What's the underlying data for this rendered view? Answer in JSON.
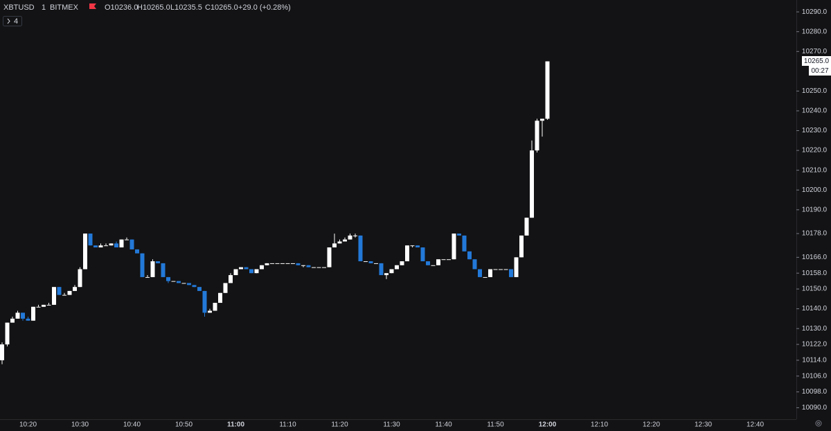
{
  "header": {
    "symbol": "XBTUSD",
    "interval": "1",
    "exchange": "BITMEX",
    "ohlc": [
      "O10236.0",
      "H10265.0",
      "L10235.5",
      "C10265.0",
      "+29.0 (+0.28%)"
    ],
    "indicators": "4"
  },
  "price_tag": {
    "price": "10265.0",
    "countdown": "00:27"
  },
  "chart_data": {
    "type": "candlestick",
    "up_color": "#ffffff",
    "down_color": "#2379d8",
    "categories": [
      null,
      null,
      null,
      null,
      null,
      "10:20",
      null,
      null,
      null,
      null,
      null,
      null,
      null,
      null,
      null,
      "10:30",
      null,
      null,
      null,
      null,
      null,
      null,
      null,
      null,
      null,
      "10:40",
      null,
      null,
      null,
      null,
      null,
      null,
      null,
      null,
      null,
      "10:50",
      null,
      null,
      null,
      null,
      null,
      null,
      null,
      null,
      null,
      "11:00",
      null,
      null,
      null,
      null,
      null,
      null,
      null,
      null,
      null,
      "11:10",
      null,
      null,
      null,
      null,
      null,
      null,
      null,
      null,
      null,
      "11:20",
      null,
      null,
      null,
      null,
      null,
      null,
      null,
      null,
      null,
      "11:30",
      null,
      null,
      null,
      null,
      null,
      null,
      null,
      null,
      null,
      "11:40",
      null,
      null,
      null,
      null,
      null,
      null,
      null,
      null,
      null,
      "11:50",
      null,
      null,
      null,
      null,
      null,
      null,
      null,
      null,
      null,
      "12:00",
      null,
      null,
      null,
      null,
      null,
      null,
      null,
      null,
      null,
      "12:10",
      null,
      null,
      null,
      null,
      null,
      null,
      null,
      null,
      null,
      "12:20",
      null,
      null,
      null,
      null,
      null,
      null,
      null,
      null,
      null,
      "12:30",
      null,
      null,
      null,
      null,
      null,
      null,
      null,
      null,
      null,
      "12:40",
      null,
      null,
      null,
      null
    ],
    "open": [
      10114,
      10122,
      10133,
      10135,
      10138,
      10135,
      10134,
      10141,
      10141,
      10142,
      10142,
      10151,
      10147,
      10147,
      10149,
      10151,
      10160,
      10178,
      10172,
      10171,
      10172,
      10172,
      10173,
      10171,
      10175,
      10175,
      10170,
      10168,
      10156,
      10156,
      10164,
      10163,
      10156,
      10154,
      10154,
      10153,
      10153,
      10152,
      10151,
      10149,
      10138,
      10139,
      10143,
      10148,
      10153,
      10157,
      10160,
      10161,
      10160,
      10158,
      10160,
      10162,
      10163,
      10163,
      10163,
      10163,
      10163,
      10163,
      10162,
      10162,
      10161,
      10161,
      10161,
      10161,
      10171,
      10173,
      10174,
      10175,
      10177,
      10177,
      10164,
      10164,
      10163,
      10163,
      10157,
      10158,
      10160,
      10162,
      10164,
      10172,
      10172,
      10171,
      10164,
      10162,
      10162,
      10165,
      10165,
      10165,
      10178,
      10177,
      10169,
      10165,
      10160,
      10156,
      10156,
      10160,
      10160,
      10160,
      10160,
      10156,
      10166,
      10177,
      10186,
      10220,
      10235,
      10236,
      null,
      null,
      null,
      null,
      null,
      null,
      null,
      null,
      null,
      null,
      null,
      null,
      null,
      null,
      null,
      null,
      null,
      null,
      null,
      null,
      null,
      null,
      null,
      null,
      null,
      null,
      null,
      null,
      null,
      null,
      null,
      null,
      null,
      null,
      null,
      null,
      null,
      null,
      null,
      null,
      null,
      null,
      null,
      null
    ],
    "high": [
      10123,
      10133,
      10136,
      10139,
      10138,
      10136,
      10141,
      10142,
      10142,
      10143,
      10151,
      10151,
      10148,
      10149,
      10152,
      10161,
      10178,
      10178,
      10172,
      10173,
      10173,
      10173,
      10174,
      10175,
      10176,
      10175,
      10170,
      10168,
      10157,
      10165,
      10164,
      10163,
      10156,
      10154,
      10154,
      10153,
      10153,
      10152,
      10151,
      10149,
      10140,
      10143,
      10148,
      10153,
      10158,
      10160,
      10161,
      10161,
      10160,
      10160,
      10162,
      10163,
      10163,
      10163,
      10163,
      10163,
      10163,
      10163,
      10162,
      10162,
      10161,
      10161,
      10161,
      10171,
      10178,
      10175,
      10176,
      10178,
      10178,
      10177,
      10164,
      10164,
      10163,
      10163,
      10158,
      10160,
      10162,
      10164,
      10172,
      10172,
      10172,
      10171,
      10164,
      10162,
      10165,
      10165,
      10165,
      10178,
      10178,
      10177,
      10169,
      10165,
      10160,
      10156,
      10160,
      10160,
      10160,
      10160,
      10160,
      10166,
      10177,
      10186,
      10225,
      10236,
      10236,
      10265,
      null,
      null,
      null,
      null,
      null,
      null,
      null,
      null,
      null,
      null,
      null,
      null,
      null,
      null,
      null,
      null,
      null,
      null,
      null,
      null,
      null,
      null,
      null,
      null,
      null,
      null,
      null,
      null,
      null,
      null,
      null,
      null,
      null,
      null,
      null,
      null,
      null,
      null,
      null,
      null,
      null,
      null,
      null,
      null
    ],
    "low": [
      10112,
      10121,
      10133,
      10135,
      10134,
      10134,
      10134,
      10141,
      10141,
      10142,
      10142,
      10147,
      10147,
      10147,
      10149,
      10151,
      10160,
      10172,
      10171,
      10171,
      10172,
      10172,
      10171,
      10171,
      10175,
      10170,
      10168,
      10156,
      10156,
      10156,
      10163,
      10156,
      10153,
      10154,
      10153,
      10153,
      10152,
      10151,
      10149,
      10136,
      10138,
      10139,
      10143,
      10148,
      10153,
      10157,
      10160,
      10160,
      10158,
      10158,
      10160,
      10162,
      10163,
      10163,
      10163,
      10163,
      10163,
      10162,
      10161,
      10161,
      10161,
      10161,
      10161,
      10161,
      10171,
      10173,
      10174,
      10175,
      10176,
      10164,
      10164,
      10163,
      10163,
      10157,
      10155,
      10158,
      10160,
      10162,
      10164,
      10171,
      10171,
      10164,
      10162,
      10162,
      10162,
      10165,
      10165,
      10165,
      10177,
      10169,
      10165,
      10160,
      10156,
      10156,
      10156,
      10160,
      10160,
      10160,
      10156,
      10156,
      10166,
      10177,
      10186,
      10219,
      10227,
      10235.5,
      null,
      null,
      null,
      null,
      null,
      null,
      null,
      null,
      null,
      null,
      null,
      null,
      null,
      null,
      null,
      null,
      null,
      null,
      null,
      null,
      null,
      null,
      null,
      null,
      null,
      null,
      null,
      null,
      null,
      null,
      null,
      null,
      null,
      null,
      null,
      null,
      null,
      null,
      null,
      null,
      null,
      null,
      null,
      null
    ],
    "close": [
      10122,
      10133,
      10135,
      10138,
      10135,
      10134,
      10141,
      10141,
      10142,
      10142,
      10151,
      10147,
      10147,
      10149,
      10151,
      10160,
      10178,
      10172,
      10171,
      10172,
      10172,
      10173,
      10171,
      10175,
      10175,
      10170,
      10168,
      10156,
      10156,
      10164,
      10163,
      10156,
      10154,
      10154,
      10153,
      10153,
      10152,
      10151,
      10149,
      10138,
      10139,
      10143,
      10148,
      10153,
      10157,
      10160,
      10161,
      10160,
      10158,
      10160,
      10162,
      10163,
      10163,
      10163,
      10163,
      10163,
      10163,
      10162,
      10162,
      10161,
      10161,
      10161,
      10161,
      10171,
      10173,
      10174,
      10175,
      10177,
      10177,
      10164,
      10164,
      10163,
      10163,
      10157,
      10158,
      10160,
      10162,
      10164,
      10172,
      10172,
      10171,
      10164,
      10162,
      10162,
      10165,
      10165,
      10165,
      10178,
      10177,
      10169,
      10165,
      10160,
      10156,
      10156,
      10160,
      10160,
      10160,
      10160,
      10156,
      10166,
      10177,
      10186,
      10220,
      10235,
      10236,
      10265,
      null,
      null,
      null,
      null,
      null,
      null,
      null,
      null,
      null,
      null,
      null,
      null,
      null,
      null,
      null,
      null,
      null,
      null,
      null,
      null,
      null,
      null,
      null,
      null,
      null,
      null,
      null,
      null,
      null,
      null,
      null,
      null,
      null,
      null,
      null,
      null,
      null,
      null,
      null,
      null,
      null,
      null,
      null,
      null
    ],
    "ylim": [
      10084.2,
      10296
    ],
    "yticks": [
      {
        "value": 10290,
        "label": "10290.0"
      },
      {
        "value": 10280,
        "label": "10280.0"
      },
      {
        "value": 10270,
        "label": "10270.0"
      },
      {
        "value": 10250,
        "label": "10250.0"
      },
      {
        "value": 10240,
        "label": "10240.0"
      },
      {
        "value": 10230,
        "label": "10230.0"
      },
      {
        "value": 10220,
        "label": "10220.0"
      },
      {
        "value": 10210,
        "label": "10210.0"
      },
      {
        "value": 10200,
        "label": "10200.0"
      },
      {
        "value": 10190,
        "label": "10190.0"
      },
      {
        "value": 10178,
        "label": "10178.0"
      },
      {
        "value": 10166,
        "label": "10166.0"
      },
      {
        "value": 10158,
        "label": "10158.0"
      },
      {
        "value": 10150,
        "label": "10150.0"
      },
      {
        "value": 10140,
        "label": "10140.0"
      },
      {
        "value": 10130,
        "label": "10130.0"
      },
      {
        "value": 10122,
        "label": "10122.0"
      },
      {
        "value": 10114,
        "label": "10114.0"
      },
      {
        "value": 10106,
        "label": "10106.0"
      },
      {
        "value": 10098,
        "label": "10098.0"
      },
      {
        "value": 10090,
        "label": "10090.0"
      }
    ],
    "grid": false
  }
}
